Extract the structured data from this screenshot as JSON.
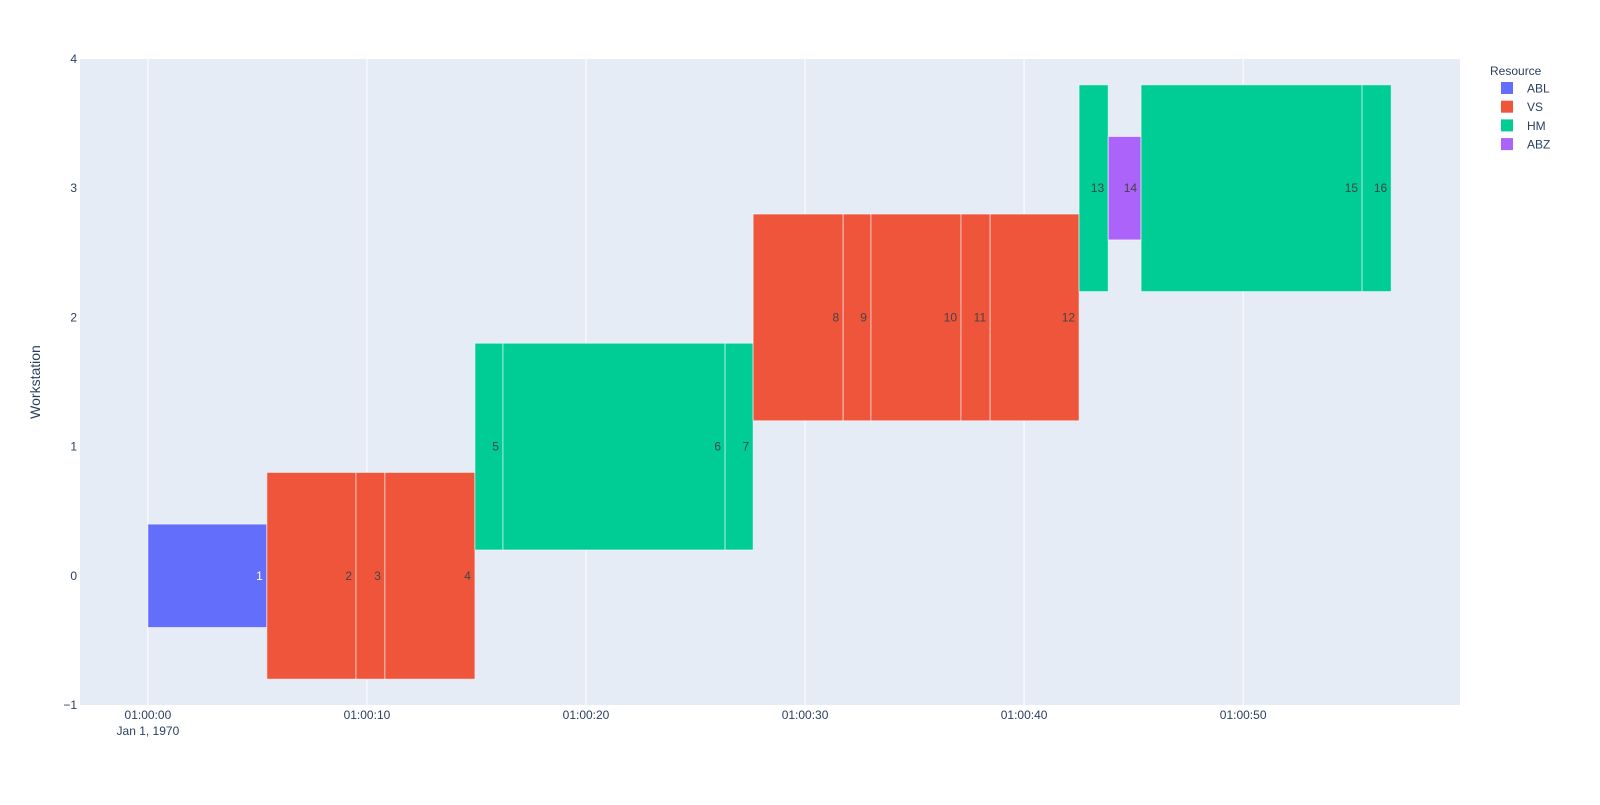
{
  "chart_data": {
    "type": "bar",
    "subtype": "gantt-timeline",
    "title": "",
    "xlabel": "",
    "ylabel": "Workstation",
    "x_axis": {
      "type": "time",
      "range_seconds": [
        -3.1,
        59.9
      ],
      "ticks": [
        {
          "seconds": 0,
          "label": "01:00:00",
          "sublabel": "Jan 1, 1970"
        },
        {
          "seconds": 10,
          "label": "01:00:10"
        },
        {
          "seconds": 20,
          "label": "01:00:20"
        },
        {
          "seconds": 30,
          "label": "01:00:30"
        },
        {
          "seconds": 40,
          "label": "01:00:40"
        },
        {
          "seconds": 50,
          "label": "01:00:50"
        }
      ]
    },
    "y_axis": {
      "range": [
        -1,
        4
      ],
      "ticks": [
        {
          "value": 4,
          "label": "4"
        },
        {
          "value": 3,
          "label": "3"
        },
        {
          "value": 2,
          "label": "2"
        },
        {
          "value": 1,
          "label": "1"
        },
        {
          "value": 0,
          "label": "0"
        },
        {
          "value": -1,
          "label": "−1"
        }
      ]
    },
    "grid": true,
    "legend": {
      "title": "Resource",
      "position": "right-top",
      "entries": [
        {
          "name": "ABL",
          "color": "#636efa"
        },
        {
          "name": "VS",
          "color": "#ef553b"
        },
        {
          "name": "HM",
          "color": "#00cc96"
        },
        {
          "name": "ABZ",
          "color": "#ab63fa"
        }
      ]
    },
    "colors": {
      "plot_bg": "#e5ecf6",
      "grid": "#ffffff",
      "text": "#2a3f5f",
      "bar_label": "#444444"
    },
    "tasks": [
      {
        "label": "1",
        "resource": "ABL",
        "workstation": 0,
        "start": 0.0,
        "end": 5.43,
        "thickness": 0.8
      },
      {
        "label": "2",
        "resource": "VS",
        "workstation": 0,
        "start": 5.43,
        "end": 9.5,
        "thickness": 1.6
      },
      {
        "label": "3",
        "resource": "VS",
        "workstation": 0,
        "start": 9.5,
        "end": 10.82,
        "thickness": 1.6
      },
      {
        "label": "4",
        "resource": "VS",
        "workstation": 0,
        "start": 10.82,
        "end": 14.93,
        "thickness": 1.6
      },
      {
        "label": "5",
        "resource": "HM",
        "workstation": 1,
        "start": 14.93,
        "end": 16.21,
        "thickness": 1.6
      },
      {
        "label": "6",
        "resource": "HM",
        "workstation": 1,
        "start": 16.21,
        "end": 26.35,
        "thickness": 1.6
      },
      {
        "label": "7",
        "resource": "HM",
        "workstation": 1,
        "start": 26.35,
        "end": 27.63,
        "thickness": 1.6
      },
      {
        "label": "8",
        "resource": "VS",
        "workstation": 2,
        "start": 27.63,
        "end": 31.74,
        "thickness": 1.6
      },
      {
        "label": "9",
        "resource": "VS",
        "workstation": 2,
        "start": 31.74,
        "end": 33.01,
        "thickness": 1.6
      },
      {
        "label": "10",
        "resource": "VS",
        "workstation": 2,
        "start": 33.01,
        "end": 37.12,
        "thickness": 1.6
      },
      {
        "label": "11",
        "resource": "VS",
        "workstation": 2,
        "start": 37.12,
        "end": 38.45,
        "thickness": 1.6
      },
      {
        "label": "12",
        "resource": "VS",
        "workstation": 2,
        "start": 38.45,
        "end": 42.51,
        "thickness": 1.6
      },
      {
        "label": "13",
        "resource": "HM",
        "workstation": 3,
        "start": 42.51,
        "end": 43.84,
        "thickness": 1.6
      },
      {
        "label": "14",
        "resource": "ABZ",
        "workstation": 3,
        "start": 43.84,
        "end": 45.34,
        "thickness": 0.8
      },
      {
        "label": "15",
        "resource": "HM",
        "workstation": 3,
        "start": 45.34,
        "end": 55.43,
        "thickness": 1.6
      },
      {
        "label": "16",
        "resource": "HM",
        "workstation": 3,
        "start": 55.43,
        "end": 56.76,
        "thickness": 1.6
      }
    ]
  }
}
